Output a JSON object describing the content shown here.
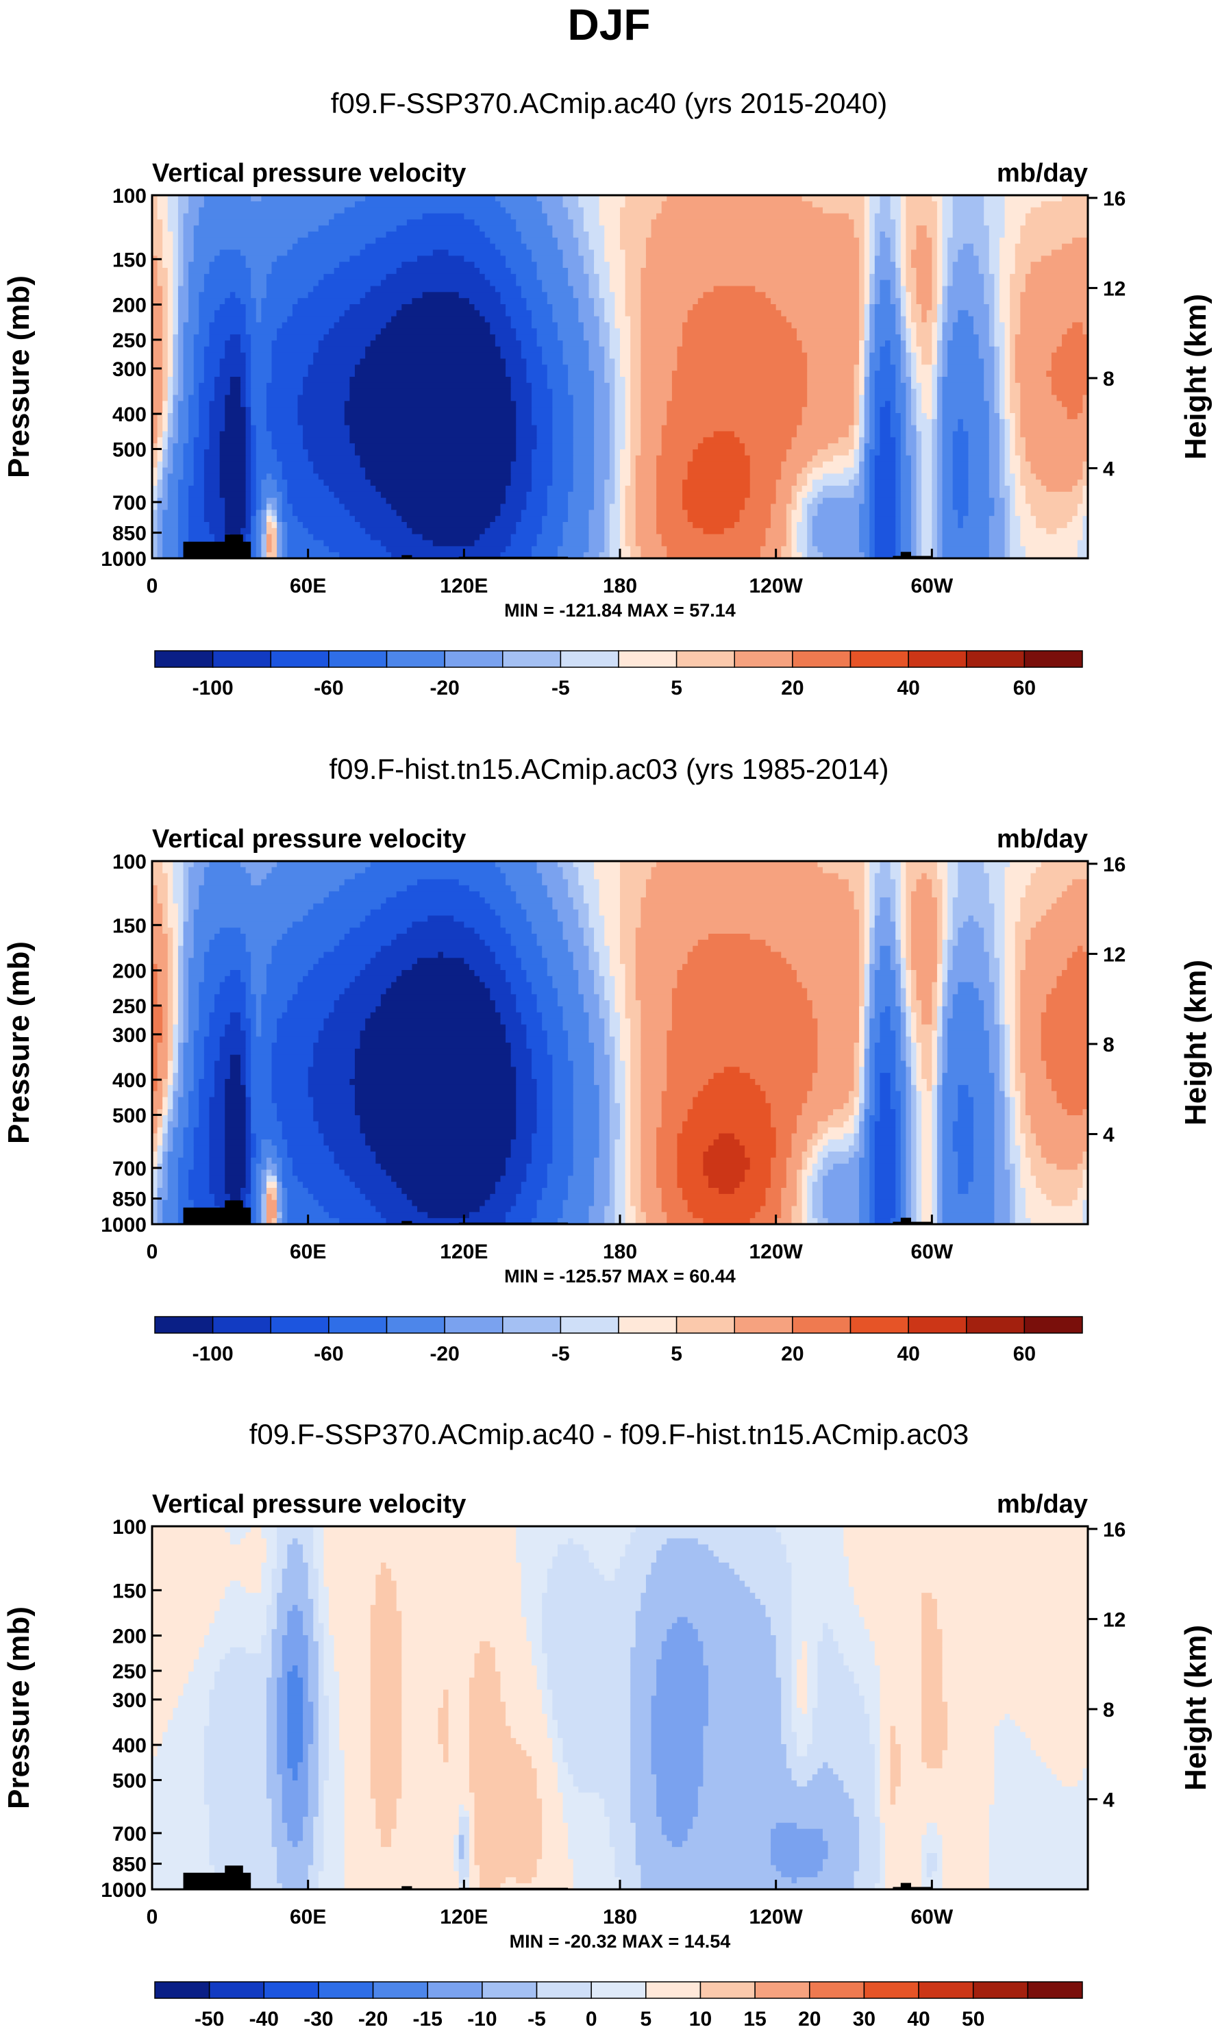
{
  "title": "DJF",
  "colors": {
    "palette": [
      "#0a1f86",
      "#123bc2",
      "#1c55df",
      "#2f6ee7",
      "#4d86ea",
      "#7aa2ef",
      "#a4c0f3",
      "#cfdff8",
      "#ffe8d9",
      "#fbc9ac",
      "#f6a27f",
      "#ef7a50",
      "#e65427",
      "#cc3617",
      "#a3200e",
      "#7a0f0b"
    ],
    "diff_palette": [
      "#0a1f86",
      "#123bc2",
      "#1c55df",
      "#2f6ee7",
      "#4d86ea",
      "#7aa2ef",
      "#a4c0f3",
      "#cfdff8",
      "#dfeaf9",
      "#ffe8d9",
      "#fbc9ac",
      "#f6a27f",
      "#ef7a50",
      "#e65427",
      "#cc3617",
      "#a3200e",
      "#7a0f0b"
    ]
  },
  "chart_data": [
    {
      "type": "heatmap",
      "title": "f09.F-SSP370.ACmip.ac40 (yrs 2015-2040)",
      "variable_label": "Vertical pressure velocity",
      "units_label": "mb/day",
      "ylabel": "Pressure (mb)",
      "ylabel_right": "Height (km)",
      "x_ticks": [
        "0",
        "60E",
        "120E",
        "180",
        "120W",
        "60W"
      ],
      "y_ticks": [
        "100",
        "150",
        "200",
        "250",
        "300",
        "400",
        "500",
        "700",
        "850",
        "1000"
      ],
      "y_ticks_right": [
        "16",
        "12",
        "8",
        "4"
      ],
      "min_max_text": "MIN = -121.84  MAX =  57.14",
      "colorbar_labels": [
        "-100",
        "-60",
        "-20",
        "-5",
        "5",
        "20",
        "40",
        "60"
      ],
      "range": [
        -121.84,
        57.14
      ],
      "diff": false,
      "features": [
        {
          "lon": 60,
          "p": 400,
          "sx": 40,
          "sy": 0.9,
          "v": -60
        },
        {
          "lon": 95,
          "p": 380,
          "sx": 30,
          "sy": 1.0,
          "v": -45
        },
        {
          "lon": 120,
          "p": 420,
          "sx": 22,
          "sy": 1.1,
          "v": -70
        },
        {
          "lon": 150,
          "p": 500,
          "sx": 25,
          "sy": 0.8,
          "v": -40
        },
        {
          "lon": 22,
          "p": 500,
          "sx": 6,
          "sy": 1.0,
          "v": -40
        },
        {
          "lon": 33,
          "p": 650,
          "sx": 5,
          "sy": 0.8,
          "v": -70
        },
        {
          "lon": 12,
          "p": 850,
          "sx": 8,
          "sy": 0.4,
          "v": -30
        },
        {
          "lon": 46,
          "p": 870,
          "sx": 3,
          "sy": 0.25,
          "v": 60
        },
        {
          "lon": 40,
          "p": 400,
          "sx": 3,
          "sy": 0.6,
          "v": 30
        },
        {
          "lon": 0,
          "p": 350,
          "sx": 6,
          "sy": 0.9,
          "v": 12
        },
        {
          "lon": 220,
          "p": 350,
          "sx": 45,
          "sy": 1.0,
          "v": 25
        },
        {
          "lon": 210,
          "p": 750,
          "sx": 25,
          "sy": 0.4,
          "v": 15
        },
        {
          "lon": 282,
          "p": 600,
          "sx": 5,
          "sy": 1.0,
          "v": -80
        },
        {
          "lon": 300,
          "p": 550,
          "sx": 4,
          "sy": 0.9,
          "v": 25
        },
        {
          "lon": 310,
          "p": 500,
          "sx": 12,
          "sy": 1.0,
          "v": -50
        },
        {
          "lon": 350,
          "p": 330,
          "sx": 20,
          "sy": 0.7,
          "v": 30
        },
        {
          "lon": 295,
          "p": 170,
          "sx": 15,
          "sy": 0.5,
          "v": 15
        },
        {
          "lon": 260,
          "p": 800,
          "sx": 12,
          "sy": 0.3,
          "v": -30
        }
      ]
    },
    {
      "type": "heatmap",
      "title": "f09.F-hist.tn15.ACmip.ac03 (yrs 1985-2014)",
      "variable_label": "Vertical pressure velocity",
      "units_label": "mb/day",
      "ylabel": "Pressure (mb)",
      "ylabel_right": "Height (km)",
      "x_ticks": [
        "0",
        "60E",
        "120E",
        "180",
        "120W",
        "60W"
      ],
      "y_ticks": [
        "100",
        "150",
        "200",
        "250",
        "300",
        "400",
        "500",
        "700",
        "850",
        "1000"
      ],
      "y_ticks_right": [
        "16",
        "12",
        "8",
        "4"
      ],
      "min_max_text": "MIN = -125.57  MAX =  60.44",
      "colorbar_labels": [
        "-100",
        "-60",
        "-20",
        "-5",
        "5",
        "20",
        "40",
        "60"
      ],
      "range": [
        -125.57,
        60.44
      ],
      "diff": false,
      "features": [
        {
          "lon": 60,
          "p": 420,
          "sx": 40,
          "sy": 0.9,
          "v": -55
        },
        {
          "lon": 95,
          "p": 380,
          "sx": 30,
          "sy": 1.0,
          "v": -45
        },
        {
          "lon": 118,
          "p": 420,
          "sx": 22,
          "sy": 1.1,
          "v": -70
        },
        {
          "lon": 148,
          "p": 500,
          "sx": 25,
          "sy": 0.8,
          "v": -45
        },
        {
          "lon": 22,
          "p": 500,
          "sx": 6,
          "sy": 1.0,
          "v": -40
        },
        {
          "lon": 33,
          "p": 650,
          "sx": 5,
          "sy": 0.8,
          "v": -70
        },
        {
          "lon": 12,
          "p": 850,
          "sx": 8,
          "sy": 0.4,
          "v": -30
        },
        {
          "lon": 46,
          "p": 870,
          "sx": 3,
          "sy": 0.25,
          "v": 60
        },
        {
          "lon": 40,
          "p": 400,
          "sx": 3,
          "sy": 0.6,
          "v": 30
        },
        {
          "lon": 0,
          "p": 350,
          "sx": 6,
          "sy": 0.9,
          "v": 14
        },
        {
          "lon": 220,
          "p": 350,
          "sx": 45,
          "sy": 1.0,
          "v": 27
        },
        {
          "lon": 220,
          "p": 750,
          "sx": 20,
          "sy": 0.35,
          "v": 22
        },
        {
          "lon": 282,
          "p": 600,
          "sx": 5,
          "sy": 1.0,
          "v": -80
        },
        {
          "lon": 300,
          "p": 550,
          "sx": 4,
          "sy": 0.9,
          "v": 25
        },
        {
          "lon": 312,
          "p": 500,
          "sx": 12,
          "sy": 1.0,
          "v": -50
        },
        {
          "lon": 352,
          "p": 330,
          "sx": 20,
          "sy": 0.7,
          "v": 32
        },
        {
          "lon": 298,
          "p": 170,
          "sx": 15,
          "sy": 0.5,
          "v": 15
        },
        {
          "lon": 262,
          "p": 800,
          "sx": 12,
          "sy": 0.3,
          "v": -30
        }
      ]
    },
    {
      "type": "heatmap",
      "title": "f09.F-SSP370.ACmip.ac40 - f09.F-hist.tn15.ACmip.ac03",
      "variable_label": "Vertical pressure velocity",
      "units_label": "mb/day",
      "ylabel": "Pressure (mb)",
      "ylabel_right": "Height (km)",
      "x_ticks": [
        "0",
        "60E",
        "120E",
        "180",
        "120W",
        "60W"
      ],
      "y_ticks": [
        "100",
        "150",
        "200",
        "250",
        "300",
        "400",
        "500",
        "700",
        "850",
        "1000"
      ],
      "y_ticks_right": [
        "16",
        "12",
        "8",
        "4"
      ],
      "min_max_text": "MIN = -20.32  MAX =  14.54",
      "colorbar_labels": [
        "-50",
        "-40",
        "-30",
        "-20",
        "-15",
        "-10",
        "-5",
        "0",
        "5",
        "10",
        "15",
        "20",
        "30",
        "40",
        "50"
      ],
      "range": [
        -20.32,
        14.54
      ],
      "diff": true,
      "features": [
        {
          "lon": 55,
          "p": 330,
          "sx": 6,
          "sy": 0.8,
          "v": -17
        },
        {
          "lon": 32,
          "p": 350,
          "sx": 10,
          "sy": 1.2,
          "v": -4
        },
        {
          "lon": 90,
          "p": 320,
          "sx": 6,
          "sy": 0.8,
          "v": 9
        },
        {
          "lon": 128,
          "p": 450,
          "sx": 6,
          "sy": 0.8,
          "v": 8
        },
        {
          "lon": 145,
          "p": 600,
          "sx": 8,
          "sy": 0.6,
          "v": 7
        },
        {
          "lon": 112,
          "p": 350,
          "sx": 5,
          "sy": 0.7,
          "v": 5
        },
        {
          "lon": 200,
          "p": 420,
          "sx": 12,
          "sy": 0.9,
          "v": -10
        },
        {
          "lon": 240,
          "p": 500,
          "sx": 30,
          "sy": 0.8,
          "v": -5
        },
        {
          "lon": 250,
          "p": 800,
          "sx": 15,
          "sy": 0.3,
          "v": -8
        },
        {
          "lon": 120,
          "p": 750,
          "sx": 2,
          "sy": 0.2,
          "v": -10
        },
        {
          "lon": 300,
          "p": 450,
          "sx": 8,
          "sy": 0.8,
          "v": 7
        },
        {
          "lon": 285,
          "p": 500,
          "sx": 3,
          "sy": 0.6,
          "v": 6
        },
        {
          "lon": 300,
          "p": 800,
          "sx": 4,
          "sy": 0.3,
          "v": -7
        },
        {
          "lon": 160,
          "p": 250,
          "sx": 10,
          "sy": 0.6,
          "v": -5
        },
        {
          "lon": 220,
          "p": 180,
          "sx": 20,
          "sy": 0.5,
          "v": -4
        },
        {
          "lon": 250,
          "p": 300,
          "sx": 4,
          "sy": 0.5,
          "v": 5
        },
        {
          "lon": 30,
          "p": 140,
          "sx": 30,
          "sy": 0.4,
          "v": 3
        },
        {
          "lon": 290,
          "p": 140,
          "sx": 15,
          "sy": 0.4,
          "v": 3
        }
      ]
    }
  ]
}
